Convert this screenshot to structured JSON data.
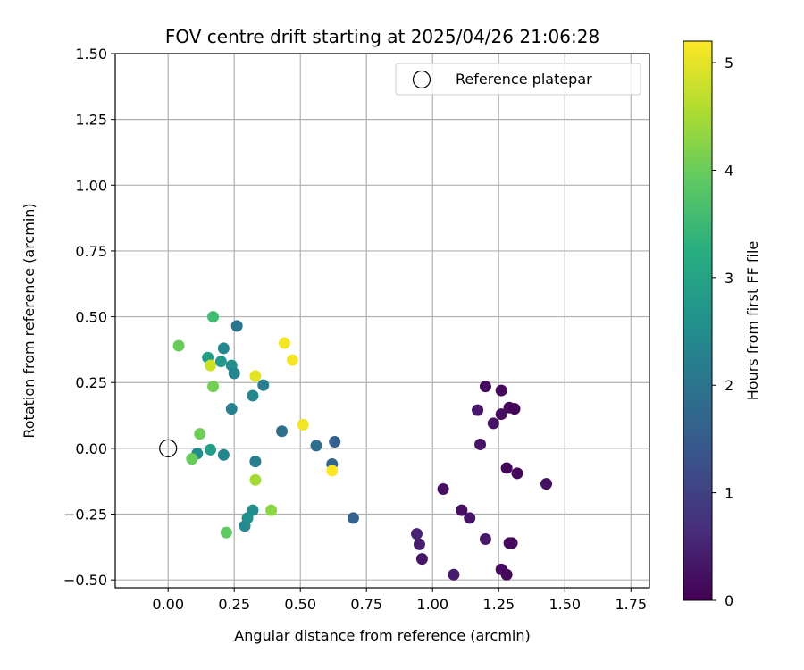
{
  "chart_data": {
    "type": "scatter",
    "title": "FOV centre drift starting at 2025/04/26 21:06:28",
    "xlabel": "Angular distance from reference (arcmin)",
    "ylabel": "Rotation from reference (arcmin)",
    "xlim": [
      -0.2,
      1.82
    ],
    "ylim": [
      -0.53,
      1.5
    ],
    "xticks": [
      0.0,
      0.25,
      0.5,
      0.75,
      1.0,
      1.25,
      1.5,
      1.75
    ],
    "xtick_labels": [
      "0.00",
      "0.25",
      "0.50",
      "0.75",
      "1.00",
      "1.25",
      "1.50",
      "1.75"
    ],
    "yticks": [
      -0.5,
      -0.25,
      0.0,
      0.25,
      0.5,
      0.75,
      1.0,
      1.25,
      1.5
    ],
    "ytick_labels": [
      "−0.50",
      "−0.25",
      "0.00",
      "0.25",
      "0.50",
      "0.75",
      "1.00",
      "1.25",
      "1.50"
    ],
    "grid": true,
    "legend": {
      "position": "top-right",
      "entries": [
        "Reference platepar"
      ]
    },
    "reference_point": {
      "x": 0.0,
      "y": 0.0
    },
    "colorbar": {
      "label": "Hours from first FF file",
      "colormap": "viridis",
      "range": [
        0,
        5.2
      ],
      "ticks": [
        0,
        1,
        2,
        3,
        4,
        5
      ],
      "tick_labels": [
        "0",
        "1",
        "2",
        "3",
        "4",
        "5"
      ]
    },
    "points": [
      {
        "x": 1.2,
        "y": 0.235,
        "c": 0.15
      },
      {
        "x": 1.26,
        "y": 0.22,
        "c": 0.1
      },
      {
        "x": 1.17,
        "y": 0.145,
        "c": 0.35
      },
      {
        "x": 1.29,
        "y": 0.155,
        "c": 0.1
      },
      {
        "x": 1.31,
        "y": 0.15,
        "c": 0.05
      },
      {
        "x": 1.26,
        "y": 0.13,
        "c": 0.2
      },
      {
        "x": 1.23,
        "y": 0.095,
        "c": 0.25
      },
      {
        "x": 1.18,
        "y": 0.015,
        "c": 0.3
      },
      {
        "x": 1.28,
        "y": -0.075,
        "c": 0.05
      },
      {
        "x": 1.32,
        "y": -0.095,
        "c": 0.1
      },
      {
        "x": 1.43,
        "y": -0.135,
        "c": 0.25
      },
      {
        "x": 1.04,
        "y": -0.155,
        "c": 0.2
      },
      {
        "x": 1.11,
        "y": -0.235,
        "c": 0.2
      },
      {
        "x": 1.14,
        "y": -0.265,
        "c": 0.3
      },
      {
        "x": 0.94,
        "y": -0.325,
        "c": 0.5
      },
      {
        "x": 0.95,
        "y": -0.365,
        "c": 0.4
      },
      {
        "x": 1.2,
        "y": -0.345,
        "c": 0.35
      },
      {
        "x": 1.29,
        "y": -0.36,
        "c": 0.2
      },
      {
        "x": 1.3,
        "y": -0.36,
        "c": 0.1
      },
      {
        "x": 0.96,
        "y": -0.42,
        "c": 0.3
      },
      {
        "x": 1.26,
        "y": -0.46,
        "c": 0.15
      },
      {
        "x": 1.08,
        "y": -0.48,
        "c": 0.4
      },
      {
        "x": 1.28,
        "y": -0.48,
        "c": 0.1
      },
      {
        "x": 0.7,
        "y": -0.265,
        "c": 1.6
      },
      {
        "x": 0.56,
        "y": 0.01,
        "c": 1.9
      },
      {
        "x": 0.63,
        "y": 0.025,
        "c": 1.6
      },
      {
        "x": 0.62,
        "y": -0.06,
        "c": 1.7
      },
      {
        "x": 0.43,
        "y": 0.065,
        "c": 1.9
      },
      {
        "x": 0.26,
        "y": 0.465,
        "c": 2.0
      },
      {
        "x": 0.21,
        "y": 0.38,
        "c": 2.4
      },
      {
        "x": 0.24,
        "y": 0.315,
        "c": 2.55
      },
      {
        "x": 0.25,
        "y": 0.285,
        "c": 2.35
      },
      {
        "x": 0.36,
        "y": 0.24,
        "c": 2.2
      },
      {
        "x": 0.32,
        "y": 0.2,
        "c": 2.4
      },
      {
        "x": 0.24,
        "y": 0.15,
        "c": 2.25
      },
      {
        "x": 0.33,
        "y": -0.05,
        "c": 2.2
      },
      {
        "x": 0.21,
        "y": -0.025,
        "c": 2.4
      },
      {
        "x": 0.11,
        "y": -0.02,
        "c": 2.5
      },
      {
        "x": 0.32,
        "y": -0.235,
        "c": 2.5
      },
      {
        "x": 0.3,
        "y": -0.265,
        "c": 2.6
      },
      {
        "x": 0.29,
        "y": -0.295,
        "c": 2.45
      },
      {
        "x": 0.2,
        "y": 0.33,
        "c": 2.8
      },
      {
        "x": 0.15,
        "y": 0.345,
        "c": 2.9
      },
      {
        "x": 0.16,
        "y": -0.005,
        "c": 2.9
      },
      {
        "x": 0.17,
        "y": 0.5,
        "c": 3.6
      },
      {
        "x": 0.04,
        "y": 0.39,
        "c": 4.0
      },
      {
        "x": 0.17,
        "y": 0.235,
        "c": 4.1
      },
      {
        "x": 0.12,
        "y": 0.055,
        "c": 4.05
      },
      {
        "x": 0.09,
        "y": -0.04,
        "c": 4.0
      },
      {
        "x": 0.22,
        "y": -0.32,
        "c": 3.9
      },
      {
        "x": 0.39,
        "y": -0.235,
        "c": 4.3
      },
      {
        "x": 0.33,
        "y": -0.12,
        "c": 4.5
      },
      {
        "x": 0.16,
        "y": 0.315,
        "c": 4.8
      },
      {
        "x": 0.33,
        "y": 0.275,
        "c": 5.0
      },
      {
        "x": 0.44,
        "y": 0.4,
        "c": 5.1
      },
      {
        "x": 0.47,
        "y": 0.335,
        "c": 5.1
      },
      {
        "x": 0.51,
        "y": 0.09,
        "c": 5.1
      },
      {
        "x": 0.62,
        "y": -0.085,
        "c": 5.2
      }
    ]
  }
}
